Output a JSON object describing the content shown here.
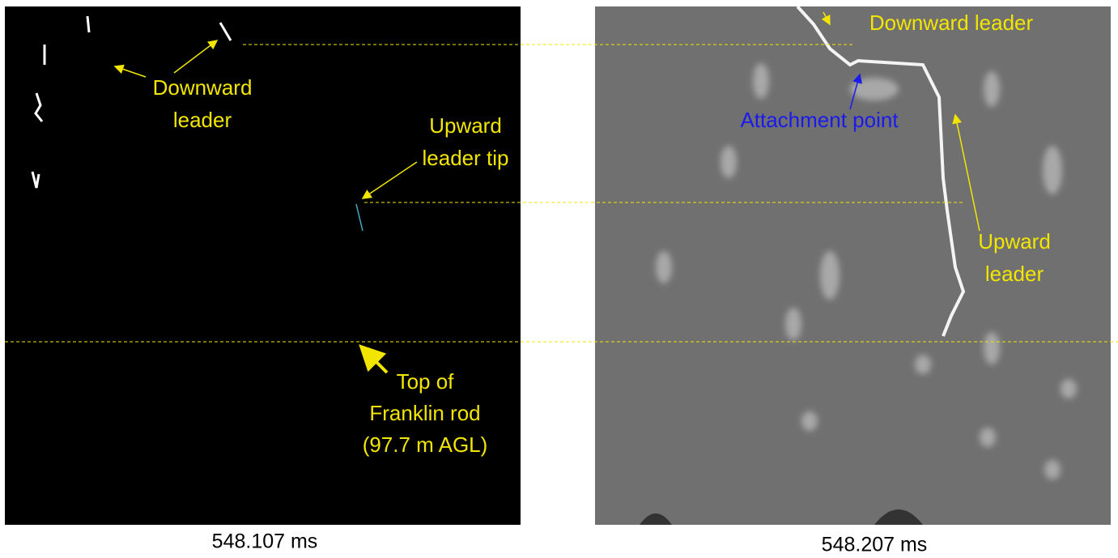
{
  "left_panel": {
    "caption": "548.107 ms",
    "annotations": [
      {
        "lines": [
          "Downward",
          "leader"
        ]
      },
      {
        "lines": [
          "Upward",
          "leader tip"
        ]
      },
      {
        "lines": [
          "Top of",
          "Franklin rod",
          "(97.7 m AGL)"
        ]
      }
    ]
  },
  "right_panel": {
    "caption": "548.207 ms",
    "annotations": [
      {
        "lines": [
          "Downward leader"
        ]
      },
      {
        "lines": [
          "Attachment point"
        ]
      },
      {
        "lines": [
          "Upward",
          "leader"
        ]
      }
    ]
  }
}
